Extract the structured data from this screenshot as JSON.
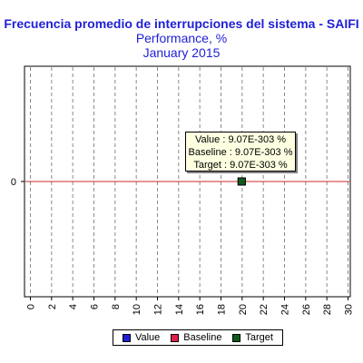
{
  "chart_data": {
    "type": "line",
    "title": "Frecuencia promedio de interrupciones del sistema - SAIFI",
    "subtitle": "Performance, %",
    "period": "January 2015",
    "x_ticks": [
      0,
      2,
      4,
      6,
      8,
      10,
      12,
      14,
      16,
      18,
      20,
      22,
      24,
      26,
      28,
      30
    ],
    "xlim": [
      0,
      30
    ],
    "y_ticks": [
      0
    ],
    "ylim": [
      -1,
      1
    ],
    "grid": "vertical-dashed",
    "series": [
      {
        "name": "Value",
        "color": "#1f1fd6",
        "points": [
          {
            "x": 20,
            "y": 0
          }
        ]
      },
      {
        "name": "Baseline",
        "color": "#e0204a",
        "points": [
          {
            "x": 0,
            "y": 0
          },
          {
            "x": 30,
            "y": 0
          }
        ]
      },
      {
        "name": "Target",
        "color": "#0d5c1e",
        "points": [
          {
            "x": 20,
            "y": 0
          }
        ]
      }
    ],
    "tooltip": {
      "lines": [
        "Value : 9.07E-303 %",
        "Baseline : 9.07E-303 %",
        "Target : 9.07E-303 %"
      ]
    },
    "baseline_line_color": "#cc2a2a",
    "legend_position": "bottom-center"
  }
}
